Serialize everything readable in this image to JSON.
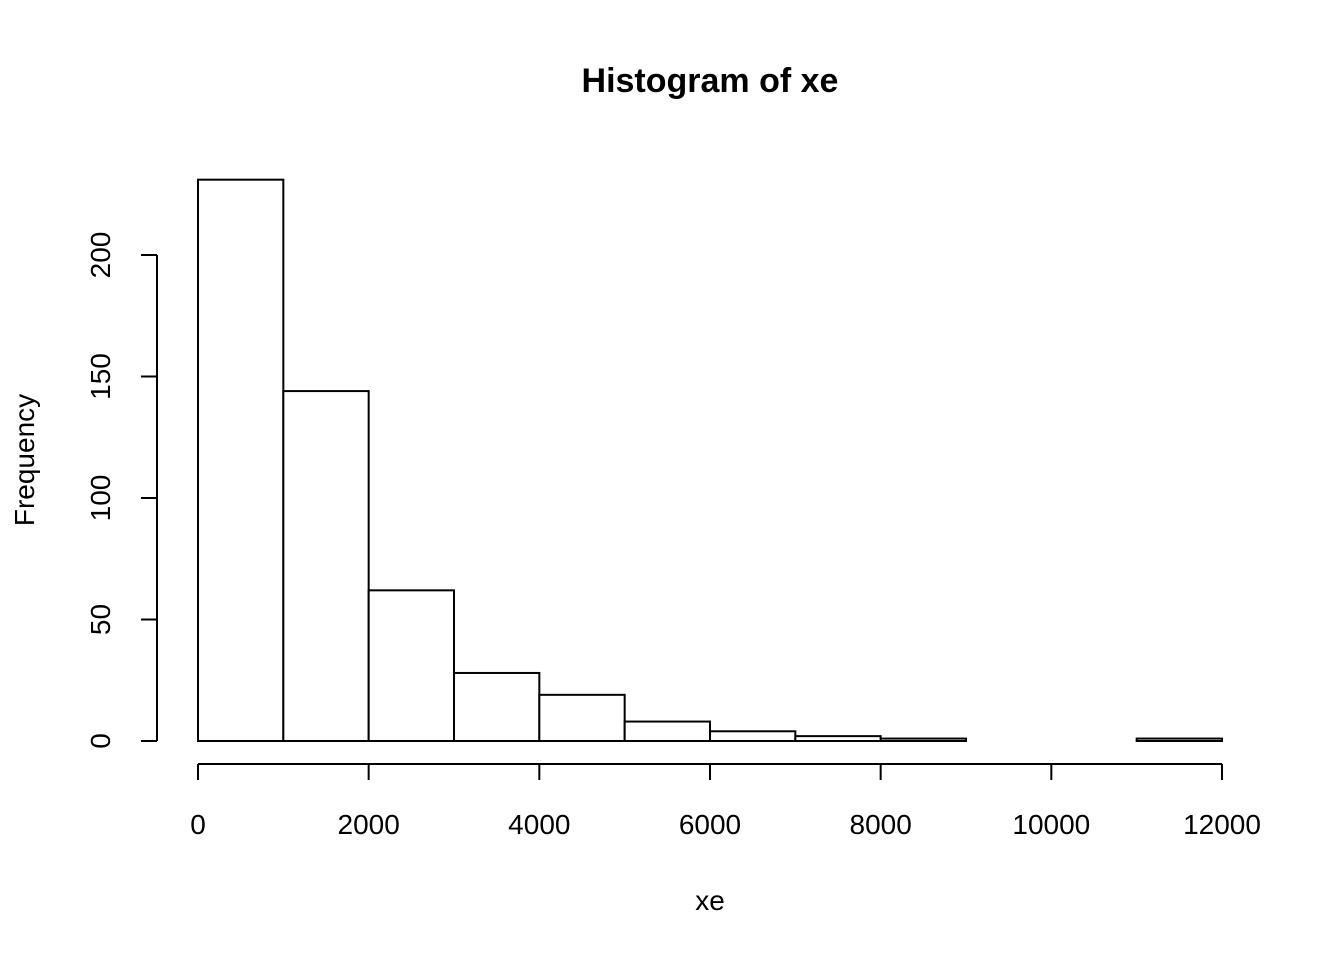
{
  "chart_data": {
    "type": "bar",
    "title": "Histogram of xe",
    "xlabel": "xe",
    "ylabel": "Frequency",
    "bin_edges": [
      0,
      1000,
      2000,
      3000,
      4000,
      5000,
      6000,
      7000,
      8000,
      9000,
      10000,
      11000,
      12000
    ],
    "values": [
      231,
      144,
      62,
      28,
      19,
      8,
      4,
      2,
      1,
      0,
      0,
      1
    ],
    "xlim": [
      0,
      12000
    ],
    "ylim": [
      0,
      231
    ],
    "x_ticks": [
      0,
      2000,
      4000,
      6000,
      8000,
      10000,
      12000
    ],
    "x_tick_labels": [
      "0",
      "2000",
      "4000",
      "6000",
      "8000",
      "10000",
      "12000"
    ],
    "y_ticks": [
      0,
      50,
      100,
      150,
      200
    ],
    "y_tick_labels": [
      "0",
      "50",
      "100",
      "150",
      "200"
    ],
    "grid": false,
    "colors": {
      "bar_fill": "#ffffff",
      "bar_stroke": "#000000"
    }
  }
}
